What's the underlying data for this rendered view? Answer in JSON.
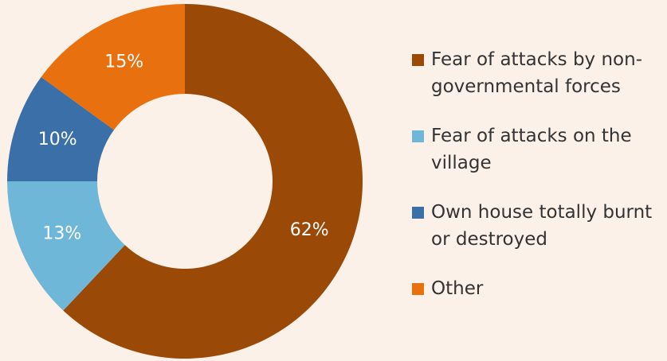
{
  "chart_data": {
    "type": "donut",
    "categories": [
      "Fear of attacks by non-governmental forces",
      "Fear of attacks on the village",
      "Own house totally burnt or destroyed",
      "Other"
    ],
    "values": [
      62,
      13,
      10,
      15
    ],
    "value_labels": [
      "62%",
      "13%",
      "10%",
      "15%"
    ],
    "colors": [
      "#9a4a06",
      "#6fb7d8",
      "#3a6fa8",
      "#e8700e"
    ],
    "legend": "right"
  }
}
